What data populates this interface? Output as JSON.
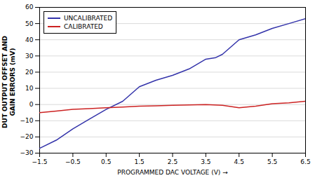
{
  "chart_data": {
    "type": "line",
    "xlabel": "PROGRAMMED DAC VOLTAGE (V)",
    "ylabel": "DUT OUTPUT OFFSET AND\nGAIN ERRORS (mV)",
    "xlim": [
      -1.5,
      6.5
    ],
    "ylim": [
      -30,
      60
    ],
    "xticks": [
      -1.5,
      -0.5,
      0.5,
      1.5,
      2.5,
      3.5,
      4.5,
      5.5,
      6.5
    ],
    "yticks": [
      -30,
      -20,
      -10,
      0,
      10,
      20,
      30,
      40,
      50,
      60
    ],
    "grid": "y",
    "legend": "upper left",
    "series": [
      {
        "name": "UNCALIBRATED",
        "color": "#3333aa",
        "x": [
          -1.5,
          -1.0,
          -0.5,
          0.0,
          0.5,
          1.0,
          1.5,
          2.0,
          2.5,
          3.0,
          3.5,
          3.8,
          4.0,
          4.5,
          5.0,
          5.5,
          6.0,
          6.5
        ],
        "values": [
          -27,
          -22,
          -15,
          -9,
          -3,
          2,
          11,
          15,
          18,
          22,
          28,
          29,
          31,
          40,
          43,
          47,
          50,
          53
        ]
      },
      {
        "name": "CALIBRATED",
        "color": "#cc2222",
        "x": [
          -1.5,
          -1.0,
          -0.5,
          0.0,
          0.5,
          1.0,
          1.5,
          2.0,
          2.5,
          3.0,
          3.5,
          4.0,
          4.5,
          5.0,
          5.5,
          6.0,
          6.5
        ],
        "values": [
          -5,
          -4,
          -3,
          -2.5,
          -2,
          -1.5,
          -1,
          -0.8,
          -0.5,
          -0.3,
          0.0,
          -0.5,
          -2,
          -1,
          0.5,
          1.0,
          2.0
        ]
      }
    ]
  }
}
